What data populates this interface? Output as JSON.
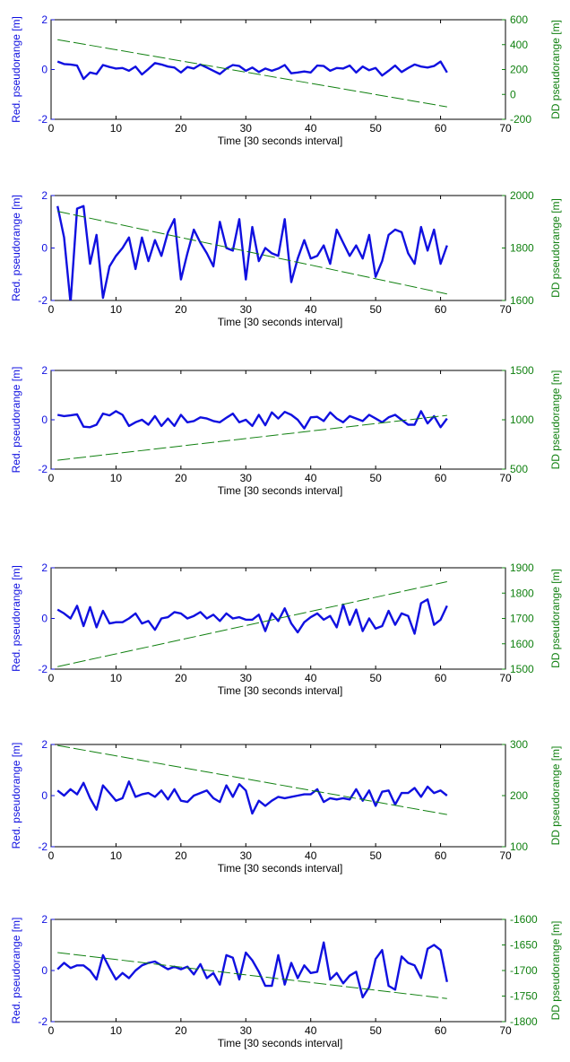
{
  "colors": {
    "left_series": "#1010e0",
    "right_series": "#108010",
    "axes": "#000000"
  },
  "chart_data": [
    {
      "type": "line",
      "xlabel": "Time [30 seconds interval]",
      "ylabel_left": "Red. pseudorange [m]",
      "ylabel_right": "DD pseudorange [m]",
      "xlim": [
        0,
        70
      ],
      "xticks": [
        "0",
        "10",
        "20",
        "30",
        "40",
        "50",
        "60",
        "70"
      ],
      "ylim_left": [
        -2,
        2
      ],
      "yticks_left": [
        "-2",
        "0",
        "2"
      ],
      "ylim_right": [
        -200,
        600
      ],
      "yticks_right": [
        "-200",
        "0",
        "200",
        "400",
        "600"
      ],
      "series": [
        {
          "axis": "left",
          "style": "solid",
          "x": [
            1,
            2,
            3,
            4,
            5,
            6,
            7,
            8,
            9,
            10,
            11,
            12,
            13,
            14,
            15,
            16,
            17,
            18,
            19,
            20,
            21,
            22,
            23,
            24,
            25,
            26,
            27,
            28,
            29,
            30,
            31,
            32,
            33,
            34,
            35,
            36,
            37,
            38,
            39,
            40,
            41,
            42,
            43,
            44,
            45,
            46,
            47,
            48,
            49,
            50,
            51,
            52,
            53,
            54,
            55,
            56,
            57,
            58,
            59,
            60,
            61
          ],
          "y": [
            0.32,
            0.22,
            0.2,
            0.16,
            -0.38,
            -0.12,
            -0.18,
            0.18,
            0.1,
            0.04,
            0.06,
            -0.05,
            0.12,
            -0.2,
            0.02,
            0.26,
            0.2,
            0.12,
            0.08,
            -0.12,
            0.1,
            0.04,
            0.2,
            0.08,
            -0.05,
            -0.18,
            0.04,
            0.18,
            0.14,
            -0.05,
            0.08,
            -0.1,
            0.04,
            -0.05,
            0.04,
            0.18,
            -0.15,
            -0.12,
            -0.08,
            -0.12,
            0.16,
            0.14,
            -0.05,
            0.06,
            0.04,
            0.16,
            -0.12,
            0.12,
            -0.03,
            0.06,
            -0.24,
            -0.05,
            0.16,
            -0.1,
            0.06,
            0.2,
            0.12,
            0.08,
            0.14,
            0.32,
            -0.12
          ]
        },
        {
          "axis": "right",
          "style": "dashed",
          "x": [
            1,
            61
          ],
          "y": [
            440,
            -100
          ]
        }
      ]
    },
    {
      "type": "line",
      "xlabel": "Time [30 seconds interval]",
      "ylabel_left": "Red. pseudorange [m]",
      "ylabel_right": "DD pseudorange [m]",
      "xlim": [
        0,
        70
      ],
      "xticks": [
        "0",
        "10",
        "20",
        "30",
        "40",
        "50",
        "60",
        "70"
      ],
      "ylim_left": [
        -2,
        2
      ],
      "yticks_left": [
        "-2",
        "0",
        "2"
      ],
      "ylim_right": [
        1600,
        2000
      ],
      "yticks_right": [
        "1600",
        "1800",
        "2000"
      ],
      "series": [
        {
          "axis": "left",
          "style": "solid",
          "x": [
            1,
            2,
            3,
            4,
            5,
            6,
            7,
            8,
            9,
            10,
            11,
            12,
            13,
            14,
            15,
            16,
            17,
            18,
            19,
            20,
            21,
            22,
            23,
            24,
            25,
            26,
            27,
            28,
            29,
            30,
            31,
            32,
            33,
            34,
            35,
            36,
            37,
            38,
            39,
            40,
            41,
            42,
            43,
            44,
            45,
            46,
            47,
            48,
            49,
            50,
            51,
            52,
            53,
            54,
            55,
            56,
            57,
            58,
            59,
            60,
            61
          ],
          "y": [
            1.6,
            0.4,
            -2.1,
            1.5,
            1.6,
            -0.6,
            0.5,
            -1.9,
            -0.7,
            -0.3,
            0.0,
            0.4,
            -0.8,
            0.4,
            -0.5,
            0.3,
            -0.3,
            0.6,
            1.1,
            -1.2,
            -0.2,
            0.7,
            0.2,
            -0.2,
            -0.7,
            1.0,
            0.0,
            -0.1,
            1.1,
            -1.2,
            0.8,
            -0.5,
            0.0,
            -0.2,
            -0.3,
            1.1,
            -1.3,
            -0.4,
            0.3,
            -0.4,
            -0.3,
            0.1,
            -0.6,
            0.7,
            0.2,
            -0.3,
            0.1,
            -0.4,
            0.5,
            -1.1,
            -0.5,
            0.5,
            0.7,
            0.6,
            -0.2,
            -0.6,
            0.8,
            -0.1,
            0.7,
            -0.6,
            0.1
          ]
        },
        {
          "axis": "right",
          "style": "dashed",
          "x": [
            1,
            61
          ],
          "y": [
            1940,
            1625
          ]
        }
      ]
    },
    {
      "type": "line",
      "xlabel": "Time [30 seconds interval]",
      "ylabel_left": "Red. pseudorange [m]",
      "ylabel_right": "DD pseudorange [m]",
      "xlim": [
        0,
        70
      ],
      "xticks": [
        "0",
        "10",
        "20",
        "30",
        "40",
        "50",
        "60",
        "70"
      ],
      "ylim_left": [
        -2,
        2
      ],
      "yticks_left": [
        "-2",
        "0",
        "2"
      ],
      "ylim_right": [
        500,
        1500
      ],
      "yticks_right": [
        "500",
        "1000",
        "1500"
      ],
      "series": [
        {
          "axis": "left",
          "style": "solid",
          "x": [
            1,
            2,
            3,
            4,
            5,
            6,
            7,
            8,
            9,
            10,
            11,
            12,
            13,
            14,
            15,
            16,
            17,
            18,
            19,
            20,
            21,
            22,
            23,
            24,
            25,
            26,
            27,
            28,
            29,
            30,
            31,
            32,
            33,
            34,
            35,
            36,
            37,
            38,
            39,
            40,
            41,
            42,
            43,
            44,
            45,
            46,
            47,
            48,
            49,
            50,
            51,
            52,
            53,
            54,
            55,
            56,
            57,
            58,
            59,
            60,
            61
          ],
          "y": [
            0.2,
            0.15,
            0.18,
            0.22,
            -0.28,
            -0.3,
            -0.2,
            0.25,
            0.18,
            0.35,
            0.2,
            -0.25,
            -0.1,
            0.0,
            -0.2,
            0.15,
            -0.25,
            0.05,
            -0.25,
            0.2,
            -0.1,
            -0.05,
            0.1,
            0.05,
            -0.05,
            -0.1,
            0.08,
            0.25,
            -0.1,
            0.0,
            -0.25,
            0.2,
            -0.22,
            0.3,
            0.05,
            0.32,
            0.2,
            0.0,
            -0.35,
            0.1,
            0.12,
            -0.05,
            0.3,
            0.05,
            -0.1,
            0.15,
            0.05,
            -0.05,
            0.2,
            0.05,
            -0.1,
            0.1,
            0.2,
            0.0,
            -0.2,
            -0.2,
            0.35,
            -0.15,
            0.15,
            -0.3,
            0.05
          ]
        },
        {
          "axis": "right",
          "style": "dashed",
          "x": [
            1,
            61
          ],
          "y": [
            590,
            1045
          ]
        }
      ]
    },
    {
      "type": "line",
      "xlabel": "Time [30 seconds interval]",
      "ylabel_left": "Red. pseudorange [m]",
      "ylabel_right": "DD pseudorange [m]",
      "xlim": [
        0,
        70
      ],
      "xticks": [
        "0",
        "10",
        "20",
        "30",
        "40",
        "50",
        "60",
        "70"
      ],
      "ylim_left": [
        -2,
        2
      ],
      "yticks_left": [
        "-2",
        "0",
        "2"
      ],
      "ylim_right": [
        1500,
        1900
      ],
      "yticks_right": [
        "1500",
        "1600",
        "1700",
        "1800",
        "1900"
      ],
      "series": [
        {
          "axis": "left",
          "style": "solid",
          "x": [
            1,
            2,
            3,
            4,
            5,
            6,
            7,
            8,
            9,
            10,
            11,
            12,
            13,
            14,
            15,
            16,
            17,
            18,
            19,
            20,
            21,
            22,
            23,
            24,
            25,
            26,
            27,
            28,
            29,
            30,
            31,
            32,
            33,
            34,
            35,
            36,
            37,
            38,
            39,
            40,
            41,
            42,
            43,
            44,
            45,
            46,
            47,
            48,
            49,
            50,
            51,
            52,
            53,
            54,
            55,
            56,
            57,
            58,
            59,
            60,
            61
          ],
          "y": [
            0.35,
            0.2,
            0.0,
            0.5,
            -0.3,
            0.45,
            -0.35,
            0.3,
            -0.2,
            -0.15,
            -0.15,
            0.0,
            0.2,
            -0.2,
            -0.1,
            -0.45,
            0.0,
            0.05,
            0.25,
            0.2,
            0.0,
            0.1,
            0.25,
            0.0,
            0.15,
            -0.1,
            0.2,
            0.0,
            0.05,
            -0.05,
            -0.05,
            0.15,
            -0.5,
            0.2,
            -0.1,
            0.4,
            -0.2,
            -0.55,
            -0.15,
            0.05,
            0.2,
            -0.05,
            0.1,
            -0.35,
            0.55,
            -0.25,
            0.35,
            -0.5,
            0.0,
            -0.4,
            -0.3,
            0.3,
            -0.25,
            0.2,
            0.1,
            -0.6,
            0.6,
            0.75,
            -0.25,
            -0.05,
            0.5
          ]
        },
        {
          "axis": "right",
          "style": "dashed",
          "x": [
            1,
            61
          ],
          "y": [
            1510,
            1845
          ]
        }
      ]
    },
    {
      "type": "line",
      "xlabel": "Time [30 seconds interval]",
      "ylabel_left": "Red. pseudorange [m]",
      "ylabel_right": "DD pseudorange [m]",
      "xlim": [
        0,
        70
      ],
      "xticks": [
        "0",
        "10",
        "20",
        "30",
        "40",
        "50",
        "60",
        "70"
      ],
      "ylim_left": [
        -2,
        2
      ],
      "yticks_left": [
        "-2",
        "0",
        "2"
      ],
      "ylim_right": [
        100,
        300
      ],
      "yticks_right": [
        "100",
        "200",
        "300"
      ],
      "series": [
        {
          "axis": "left",
          "style": "solid",
          "x": [
            1,
            2,
            3,
            4,
            5,
            6,
            7,
            8,
            9,
            10,
            11,
            12,
            13,
            14,
            15,
            16,
            17,
            18,
            19,
            20,
            21,
            22,
            23,
            24,
            25,
            26,
            27,
            28,
            29,
            30,
            31,
            32,
            33,
            34,
            35,
            36,
            37,
            38,
            39,
            40,
            41,
            42,
            43,
            44,
            45,
            46,
            47,
            48,
            49,
            50,
            51,
            52,
            53,
            54,
            55,
            56,
            57,
            58,
            59,
            60,
            61
          ],
          "y": [
            0.2,
            0.0,
            0.25,
            0.05,
            0.5,
            -0.1,
            -0.55,
            0.4,
            0.1,
            -0.2,
            -0.1,
            0.55,
            -0.05,
            0.05,
            0.1,
            -0.05,
            0.2,
            -0.15,
            0.25,
            -0.2,
            -0.25,
            0.0,
            0.1,
            0.2,
            -0.1,
            -0.25,
            0.4,
            -0.05,
            0.45,
            0.2,
            -0.7,
            -0.2,
            -0.4,
            -0.2,
            -0.05,
            -0.1,
            -0.05,
            0.0,
            0.05,
            0.05,
            0.25,
            -0.25,
            -0.1,
            -0.15,
            -0.1,
            -0.15,
            0.25,
            -0.2,
            0.2,
            -0.4,
            0.15,
            0.2,
            -0.35,
            0.1,
            0.1,
            0.3,
            -0.05,
            0.35,
            0.1,
            0.2,
            0.0
          ]
        },
        {
          "axis": "right",
          "style": "dashed",
          "x": [
            1,
            61
          ],
          "y": [
            298,
            163
          ]
        }
      ]
    },
    {
      "type": "line",
      "xlabel": "Time [30 seconds interval]",
      "ylabel_left": "Red. pseudorange [m]",
      "ylabel_right": "DD pseudorange [m]",
      "xlim": [
        0,
        70
      ],
      "xticks": [
        "0",
        "10",
        "20",
        "30",
        "40",
        "50",
        "60",
        "70"
      ],
      "ylim_left": [
        -2,
        2
      ],
      "yticks_left": [
        "-2",
        "0",
        "2"
      ],
      "ylim_right": [
        -1800,
        -1600
      ],
      "yticks_right": [
        "-1800",
        "-1750",
        "-1700",
        "-1650",
        "-1600"
      ],
      "series": [
        {
          "axis": "left",
          "style": "solid",
          "x": [
            1,
            2,
            3,
            4,
            5,
            6,
            7,
            8,
            9,
            10,
            11,
            12,
            13,
            14,
            15,
            16,
            17,
            18,
            19,
            20,
            21,
            22,
            23,
            24,
            25,
            26,
            27,
            28,
            29,
            30,
            31,
            32,
            33,
            34,
            35,
            36,
            37,
            38,
            39,
            40,
            41,
            42,
            43,
            44,
            45,
            46,
            47,
            48,
            49,
            50,
            51,
            52,
            53,
            54,
            55,
            56,
            57,
            58,
            59,
            60,
            61
          ],
          "y": [
            0.05,
            0.3,
            0.1,
            0.2,
            0.2,
            0.0,
            -0.35,
            0.6,
            0.1,
            -0.35,
            -0.1,
            -0.3,
            0.0,
            0.2,
            0.3,
            0.35,
            0.2,
            0.05,
            0.15,
            0.05,
            0.15,
            -0.15,
            0.25,
            -0.3,
            -0.1,
            -0.55,
            0.6,
            0.5,
            -0.35,
            0.7,
            0.4,
            -0.05,
            -0.6,
            -0.6,
            0.6,
            -0.55,
            0.3,
            -0.3,
            0.2,
            -0.1,
            -0.05,
            1.1,
            -0.35,
            -0.1,
            -0.5,
            -0.2,
            -0.05,
            -1.05,
            -0.65,
            0.45,
            0.8,
            -0.6,
            -0.75,
            0.55,
            0.3,
            0.2,
            -0.3,
            0.85,
            1.0,
            0.8,
            -0.45
          ]
        },
        {
          "axis": "right",
          "style": "dashed",
          "x": [
            1,
            61
          ],
          "y": [
            -1665,
            -1755
          ]
        }
      ]
    }
  ]
}
